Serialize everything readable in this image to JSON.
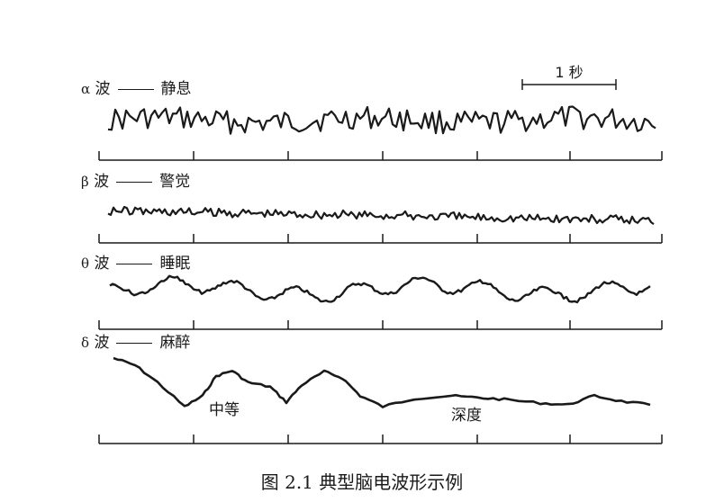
{
  "waves": [
    {
      "symbol": "α",
      "wave_char": "波",
      "state": "静息"
    },
    {
      "symbol": "β",
      "wave_char": "波",
      "state": "警觉"
    },
    {
      "symbol": "θ",
      "wave_char": "波",
      "state": "睡眠"
    },
    {
      "symbol": "δ",
      "wave_char": "波",
      "state": "麻醉"
    }
  ],
  "annotations": {
    "medium": "中等",
    "deep": "深度"
  },
  "scale_bar": {
    "label": "1 秒"
  },
  "caption": "图 2.1  典型脑电波形示例"
}
